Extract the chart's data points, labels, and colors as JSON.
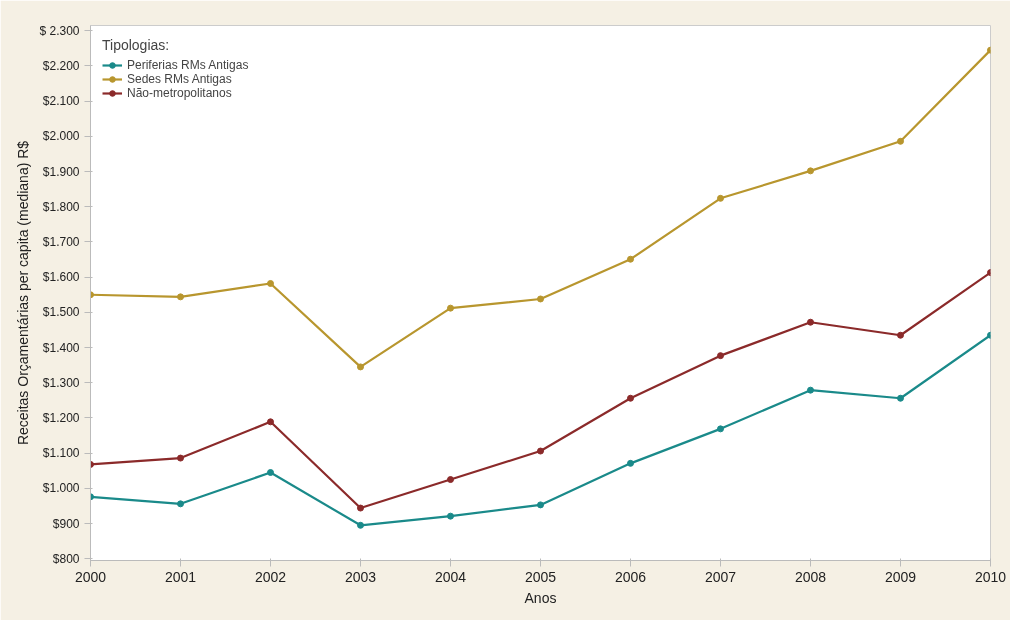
{
  "chart_data": {
    "type": "line",
    "xlabel": "Anos",
    "ylabel": "Receitas Orçamentárias per capita (mediana) R$",
    "legend_title": "Tipologias:",
    "x": [
      2000,
      2001,
      2002,
      2003,
      2004,
      2005,
      2006,
      2007,
      2008,
      2009,
      2010
    ],
    "series": [
      {
        "name": "Periferias RMs Antigas",
        "color": "#1a8a8a",
        "values": [
          976,
          956,
          1045,
          895,
          921,
          953,
          1071,
          1169,
          1279,
          1256,
          1435
        ]
      },
      {
        "name": "Sedes RMs Antigas",
        "color": "#b8962e",
        "values": [
          1550,
          1544,
          1582,
          1345,
          1512,
          1538,
          1651,
          1824,
          1902,
          1986,
          2245
        ]
      },
      {
        "name": "Não-metropolitanos",
        "color": "#8b2a2a",
        "values": [
          1068,
          1086,
          1189,
          944,
          1025,
          1106,
          1256,
          1377,
          1472,
          1435,
          1613
        ]
      }
    ],
    "xlim": [
      2000,
      2010
    ],
    "xticks": [
      2000,
      2001,
      2002,
      2003,
      2004,
      2005,
      2006,
      2007,
      2008,
      2009,
      2010
    ],
    "ylim": [
      795,
      2315
    ],
    "yticks": [
      {
        "value": 800,
        "label": "$800"
      },
      {
        "value": 900,
        "label": "$900"
      },
      {
        "value": 1000,
        "label": "$1.000"
      },
      {
        "value": 1100,
        "label": "$1.100"
      },
      {
        "value": 1200,
        "label": "$1.200"
      },
      {
        "value": 1300,
        "label": "$1.300"
      },
      {
        "value": 1400,
        "label": "$1.400"
      },
      {
        "value": 1500,
        "label": "$1.500"
      },
      {
        "value": 1600,
        "label": "$1.600"
      },
      {
        "value": 1700,
        "label": "$1.700"
      },
      {
        "value": 1800,
        "label": "$1.800"
      },
      {
        "value": 1900,
        "label": "$1.900"
      },
      {
        "value": 2000,
        "label": "$2.000"
      },
      {
        "value": 2100,
        "label": "$2.100"
      },
      {
        "value": 2200,
        "label": "$2.200"
      },
      {
        "value": 2300,
        "label": "$ 2.300"
      }
    ],
    "grid": false,
    "legend": "top left",
    "marker": "circle",
    "line_style": "solid"
  }
}
